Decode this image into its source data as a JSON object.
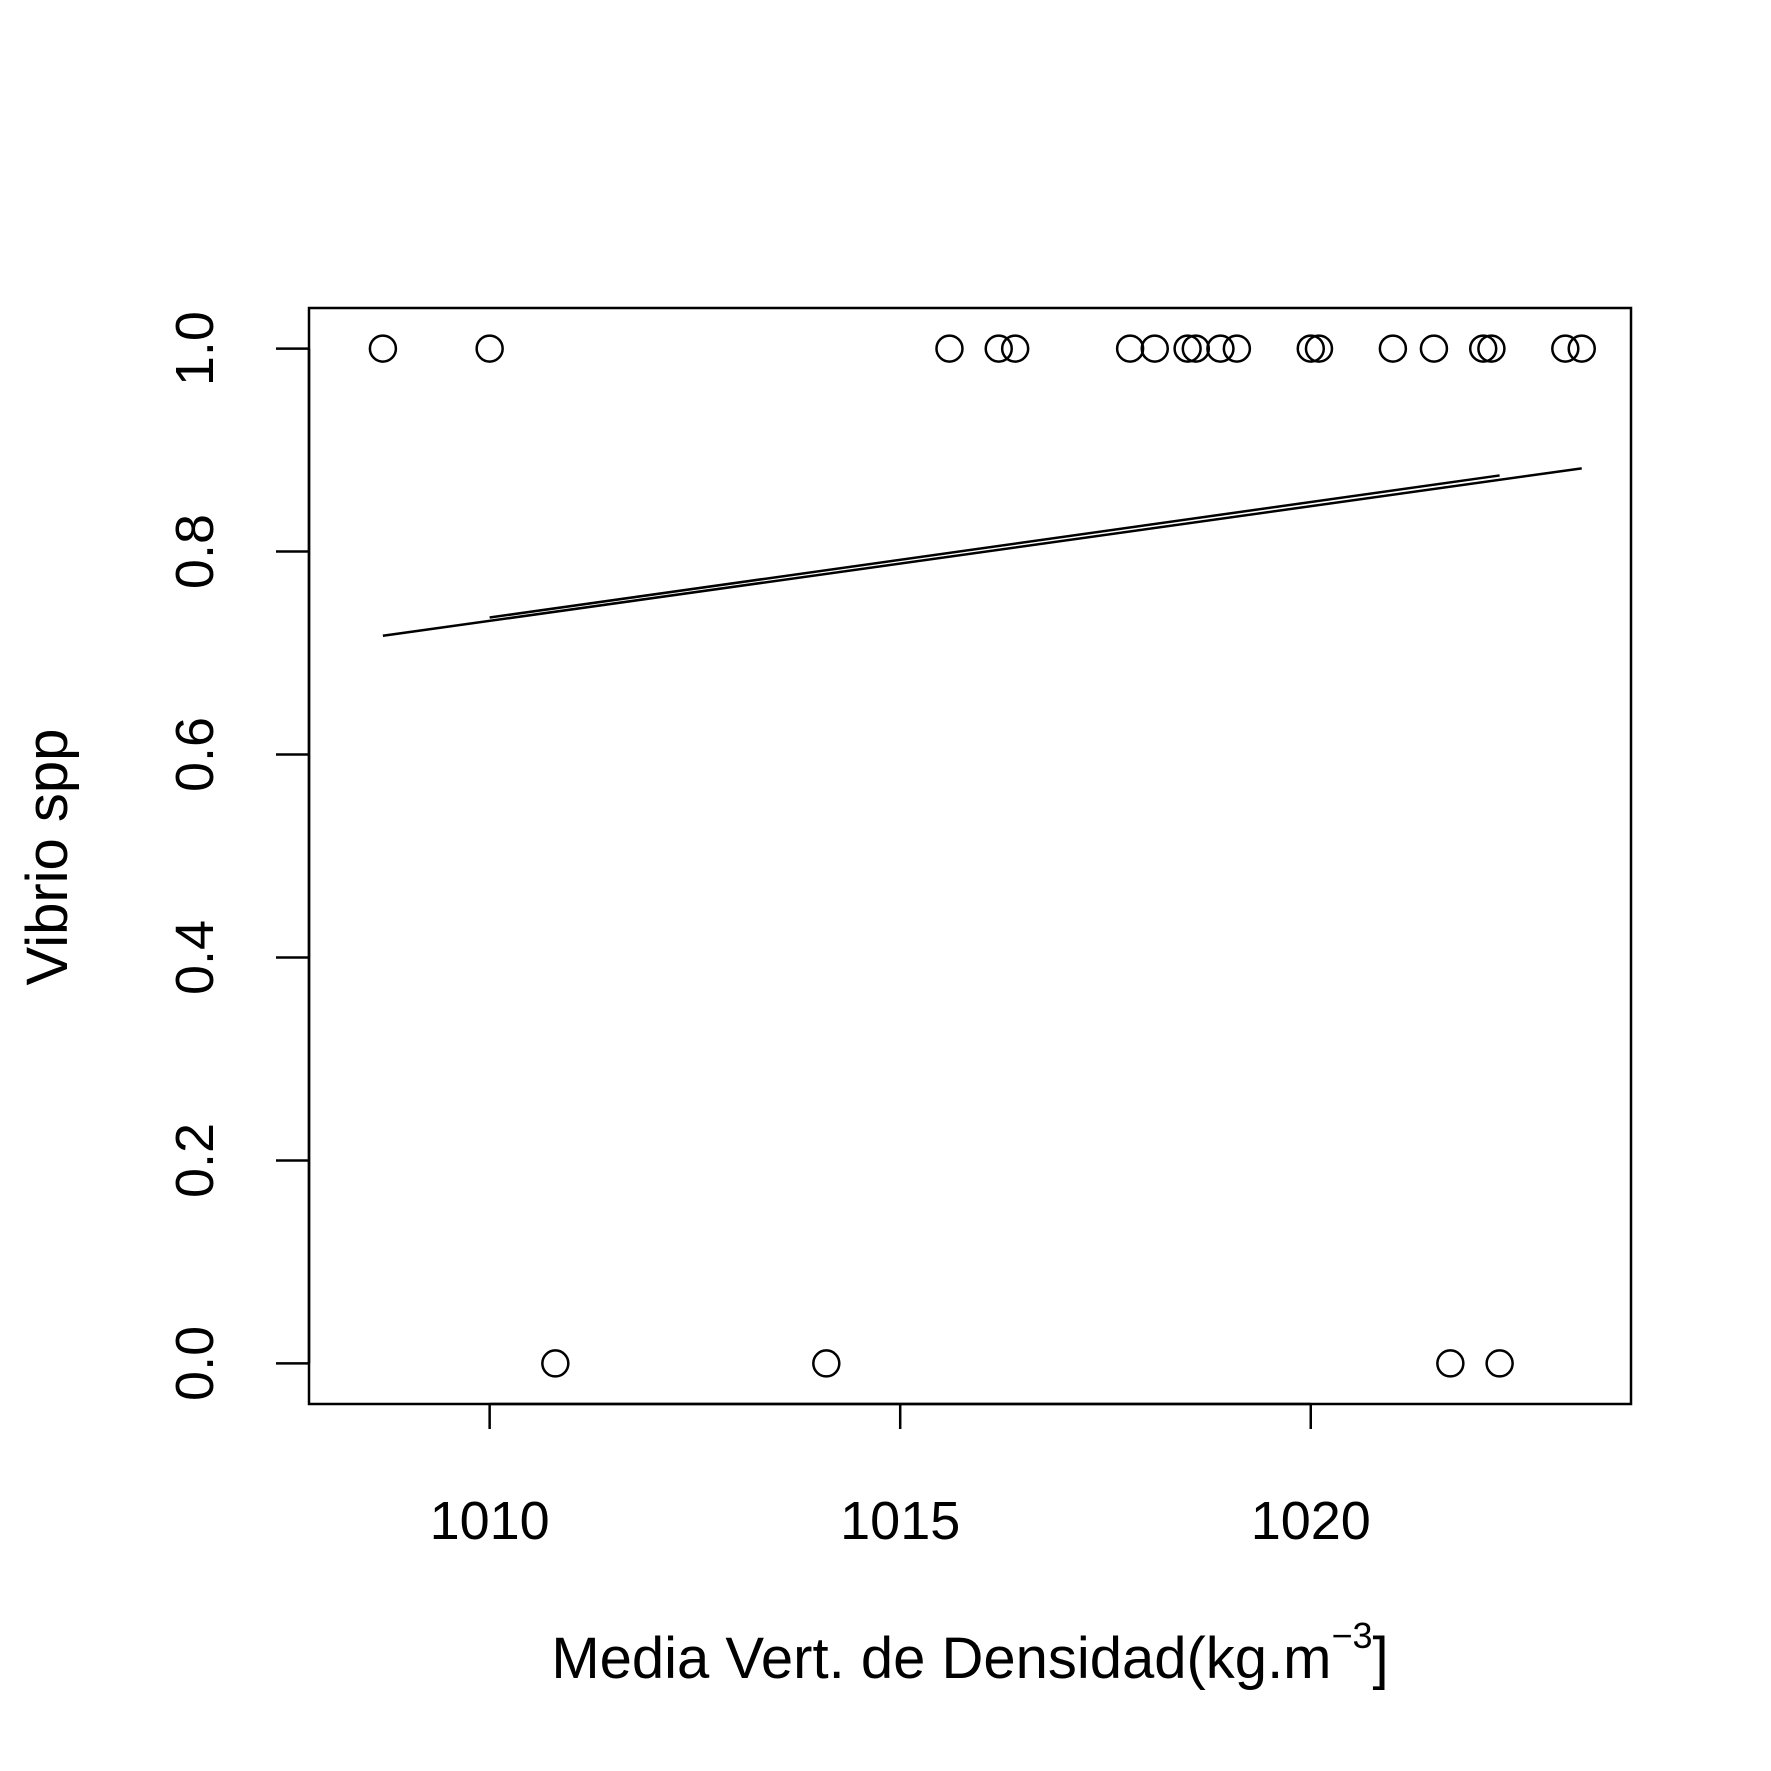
{
  "chart_data": {
    "type": "scatter",
    "xlabel": "Media Vert. de Densidad(kg.m",
    "xlabel_superscript": "−3",
    "xlabel_suffix": "]",
    "ylabel": "Vibrio spp",
    "xlim": [
      1007.8,
      1023.9
    ],
    "ylim": [
      -0.04,
      1.04
    ],
    "x_ticks": [
      {
        "value": 1010,
        "label": "1010"
      },
      {
        "value": 1015,
        "label": "1015"
      },
      {
        "value": 1020,
        "label": "1020"
      }
    ],
    "y_ticks": [
      {
        "value": 0.0,
        "label": "0.0"
      },
      {
        "value": 0.2,
        "label": "0.2"
      },
      {
        "value": 0.4,
        "label": "0.4"
      },
      {
        "value": 0.6,
        "label": "0.6"
      },
      {
        "value": 0.8,
        "label": "0.8"
      },
      {
        "value": 1.0,
        "label": "1.0"
      }
    ],
    "points": [
      {
        "x": 1008.7,
        "y": 1
      },
      {
        "x": 1010.0,
        "y": 1
      },
      {
        "x": 1010.8,
        "y": 0
      },
      {
        "x": 1014.1,
        "y": 0
      },
      {
        "x": 1015.6,
        "y": 1
      },
      {
        "x": 1016.2,
        "y": 1
      },
      {
        "x": 1016.4,
        "y": 1
      },
      {
        "x": 1017.8,
        "y": 1
      },
      {
        "x": 1018.1,
        "y": 1
      },
      {
        "x": 1018.5,
        "y": 1
      },
      {
        "x": 1018.6,
        "y": 1
      },
      {
        "x": 1018.9,
        "y": 1
      },
      {
        "x": 1019.1,
        "y": 1
      },
      {
        "x": 1020.0,
        "y": 1
      },
      {
        "x": 1020.1,
        "y": 1
      },
      {
        "x": 1021.0,
        "y": 1
      },
      {
        "x": 1021.5,
        "y": 1
      },
      {
        "x": 1021.7,
        "y": 0
      },
      {
        "x": 1022.1,
        "y": 1
      },
      {
        "x": 1022.2,
        "y": 1
      },
      {
        "x": 1022.3,
        "y": 0
      },
      {
        "x": 1023.1,
        "y": 1
      },
      {
        "x": 1023.3,
        "y": 1
      }
    ],
    "fit_lines": [
      {
        "x": [
          1008.7,
          1023.3
        ],
        "y": [
          0.717,
          0.882
        ]
      },
      {
        "x": [
          1010.0,
          1022.3
        ],
        "y": [
          0.735,
          0.875
        ]
      }
    ],
    "grid": false,
    "legend": "none"
  }
}
